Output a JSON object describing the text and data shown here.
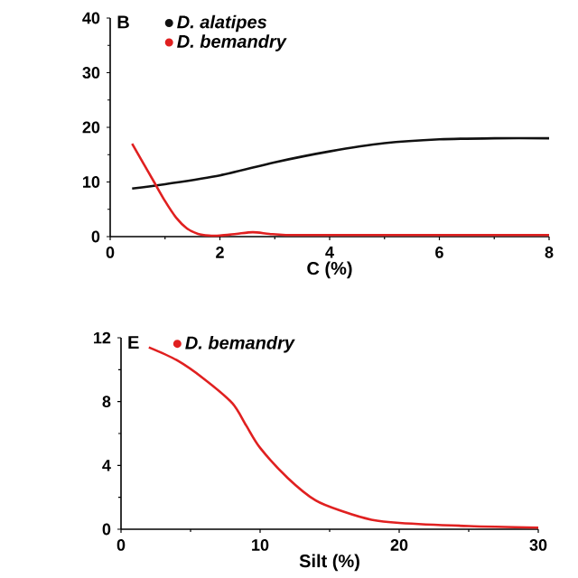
{
  "chart_data": [
    {
      "type": "line",
      "title": "B",
      "xlabel": "C (%)",
      "xlim": [
        0,
        8
      ],
      "ylim": [
        0,
        40
      ],
      "xticks": [
        0,
        2,
        4,
        6,
        8
      ],
      "yticks": [
        0,
        10,
        20,
        30,
        40
      ],
      "legend": "top left",
      "series": [
        {
          "name": "D. alatipes",
          "color": "#111111",
          "x": [
            0.4,
            1,
            2,
            3,
            4,
            5,
            6,
            7,
            8
          ],
          "values": [
            8.8,
            9.6,
            11.2,
            13.6,
            15.6,
            17.1,
            17.8,
            18,
            18
          ]
        },
        {
          "name": "D. bemandry",
          "color": "#e02020",
          "x": [
            0.4,
            0.6,
            0.8,
            1,
            1.2,
            1.4,
            1.6,
            1.8,
            2,
            2.3,
            2.6,
            2.9,
            3.2,
            4,
            5,
            6,
            7,
            8
          ],
          "values": [
            17,
            13.5,
            10,
            6.5,
            3.5,
            1.5,
            0.5,
            0.2,
            0.2,
            0.5,
            0.8,
            0.5,
            0.3,
            0.3,
            0.3,
            0.3,
            0.3,
            0.3
          ]
        }
      ]
    },
    {
      "type": "line",
      "title": "E",
      "xlabel": "Silt (%)",
      "xlim": [
        0,
        30
      ],
      "ylim": [
        0,
        12
      ],
      "xticks": [
        0,
        10,
        20,
        30
      ],
      "yticks": [
        0,
        4,
        8,
        12
      ],
      "legend": "top left",
      "series": [
        {
          "name": "D. bemandry",
          "color": "#e02020",
          "x": [
            2,
            4,
            6,
            8,
            9,
            10,
            12,
            14,
            16,
            18,
            20,
            25,
            30
          ],
          "values": [
            11.4,
            10.6,
            9.4,
            7.9,
            6.5,
            5.1,
            3.2,
            1.8,
            1.1,
            0.6,
            0.4,
            0.2,
            0.1
          ]
        }
      ]
    }
  ]
}
